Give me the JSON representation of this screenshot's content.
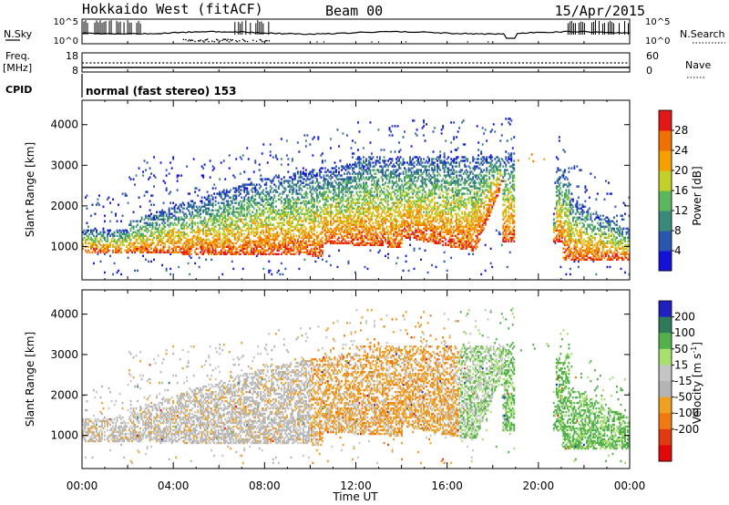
{
  "header": {
    "radar_title": "Hokkaido West (fitACF)",
    "beam_label": "Beam 00",
    "date_label": "15/Apr/2015"
  },
  "top_panels": {
    "nsky_label": "N.Sky",
    "nsky_ticks": [
      "10^5",
      "10^0"
    ],
    "nsearch_label": "N.Search",
    "nsearch_ticks": [
      "10^5",
      "10^0"
    ],
    "freq_label": "Freq.",
    "freq_unit": "[MHz]",
    "freq_ticks": [
      "18",
      "8"
    ],
    "nave_label": "Nave",
    "nave_ticks": [
      "60",
      "0"
    ],
    "cpid_label": "CPID",
    "cpid_text": "normal (fast stereo) 153"
  },
  "chart_data": [
    {
      "type": "heatmap",
      "name": "power-panel",
      "ylabel": "Slant Range [km]",
      "yticks": [
        "1000",
        "2000",
        "3000",
        "4000"
      ],
      "ylim": [
        180,
        4600
      ],
      "xlim": [
        0,
        24
      ],
      "xticks": [
        "00:00",
        "04:00",
        "08:00",
        "12:00",
        "16:00",
        "20:00",
        "00:00"
      ],
      "colorbar": {
        "label": "Power [dB]",
        "tick_labels": [
          "4",
          "8",
          "12",
          "16",
          "20",
          "24",
          "28"
        ],
        "range": [
          0,
          30
        ]
      }
    },
    {
      "type": "heatmap",
      "name": "velocity-panel",
      "ylabel": "Slant Range [km]",
      "yticks": [
        "1000",
        "2000",
        "3000",
        "4000"
      ],
      "ylim": [
        180,
        4600
      ],
      "xlim": [
        0,
        24
      ],
      "xticks": [
        "00:00",
        "04:00",
        "08:00",
        "12:00",
        "16:00",
        "20:00",
        "00:00"
      ],
      "xlabel": "Time UT",
      "colorbar": {
        "label": "Velocity [m s",
        "label_sup": "-1",
        "label_end": "]",
        "tick_labels": [
          "-200",
          "-100",
          "-50",
          "-15",
          "15",
          "50",
          "100",
          "200"
        ]
      }
    }
  ],
  "colors": {
    "power_scale": [
      "#1313d8",
      "#2a55b0",
      "#3a8a7a",
      "#5cb65c",
      "#c4d028",
      "#f5a000",
      "#f07000",
      "#e21818"
    ],
    "velocity_scale": [
      "#2020c0",
      "#2e7a5a",
      "#54b04c",
      "#a8e070",
      "#c4c4c4",
      "#b4b4b4",
      "#f0a020",
      "#f07a10",
      "#e03a10",
      "#e00808"
    ]
  }
}
